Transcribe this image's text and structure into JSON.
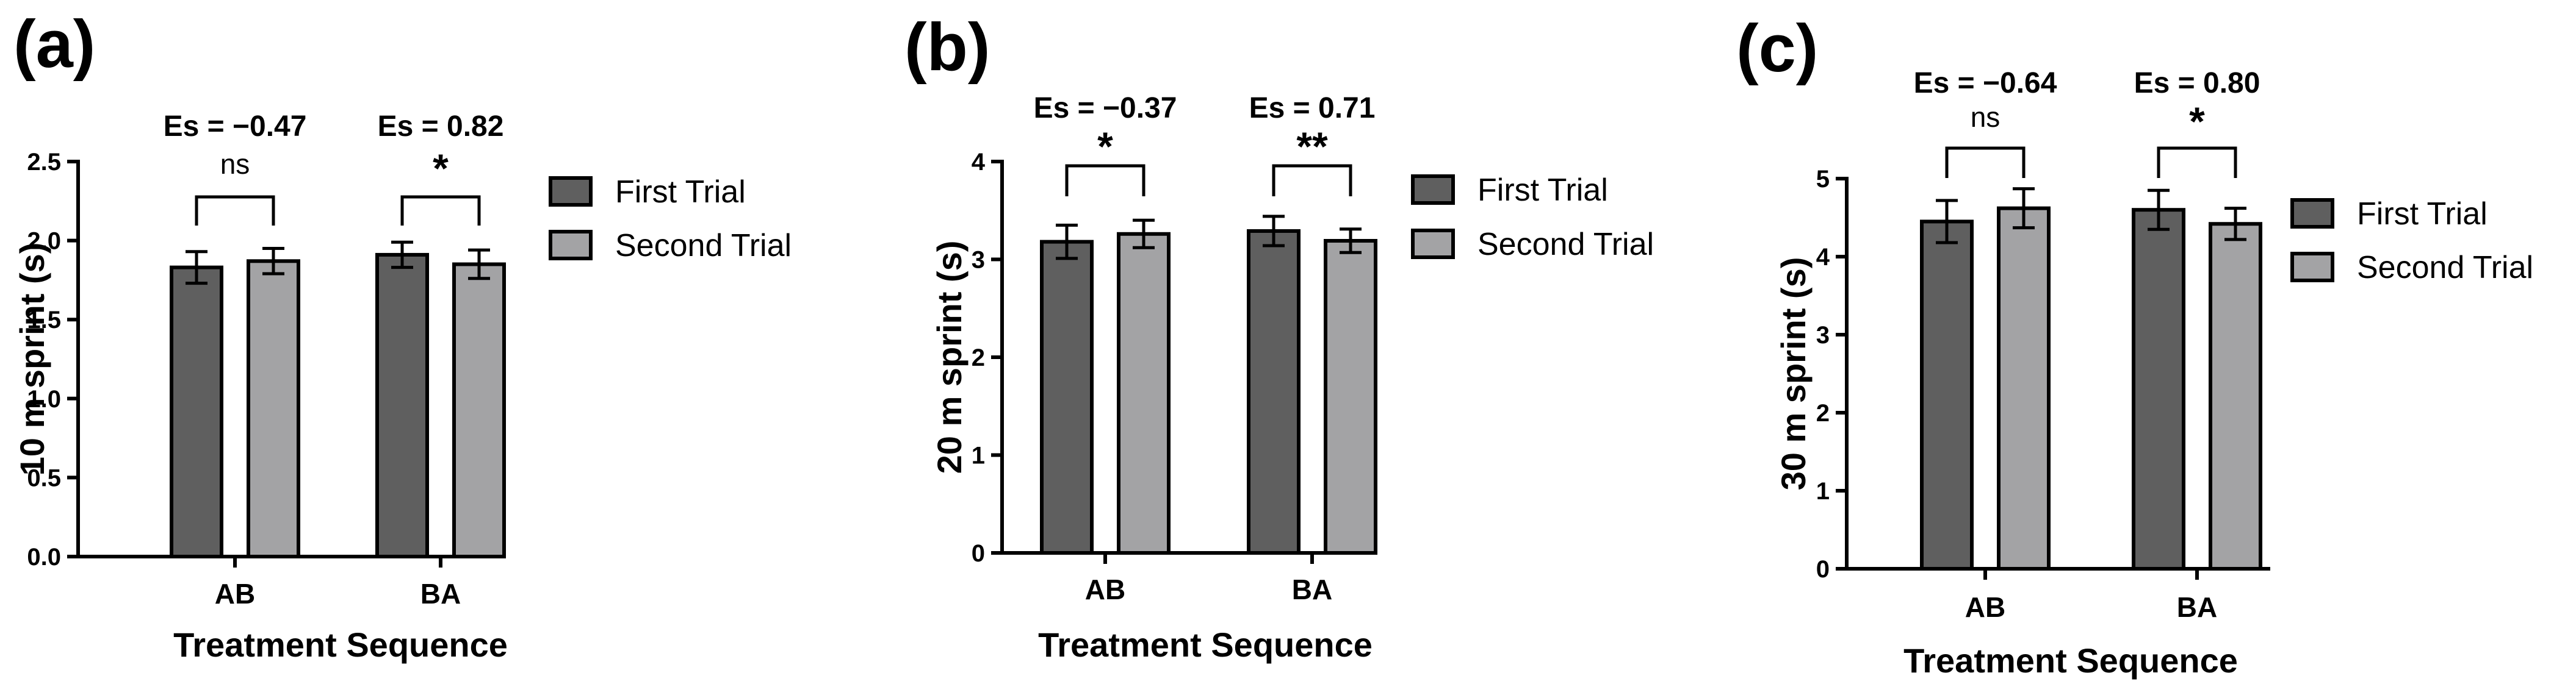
{
  "colors": {
    "first_trial": "#5f5f5f",
    "second_trial": "#a3a3a5"
  },
  "chart_data": [
    {
      "type": "bar",
      "panel_label": "(a)",
      "categories": [
        "AB",
        "BA"
      ],
      "xlabel": "Treatment Sequence",
      "ylabel": "10 m sprint (s)",
      "ylim": [
        0,
        2.5
      ],
      "yticks": [
        0.0,
        0.5,
        1.0,
        1.5,
        2.0,
        2.5
      ],
      "ytick_labels": [
        "0.0",
        "0.5",
        "1.0",
        "1.5",
        "2.0",
        "2.5"
      ],
      "legend": "right",
      "grid": false,
      "series": [
        {
          "name": "First Trial",
          "values": [
            1.83,
            1.91
          ],
          "errors": [
            0.1,
            0.08
          ]
        },
        {
          "name": "Second Trial",
          "values": [
            1.87,
            1.85
          ],
          "errors": [
            0.08,
            0.09
          ]
        }
      ],
      "annotations": [
        {
          "category": "AB",
          "effect_size": "Es = −0.47",
          "significance": "ns"
        },
        {
          "category": "BA",
          "effect_size": "Es = 0.82",
          "significance": "*"
        }
      ]
    },
    {
      "type": "bar",
      "panel_label": "(b)",
      "categories": [
        "AB",
        "BA"
      ],
      "xlabel": "Treatment Sequence",
      "ylabel": "20 m sprint (s)",
      "ylim": [
        0,
        4
      ],
      "yticks": [
        0,
        1,
        2,
        3,
        4
      ],
      "ytick_labels": [
        "0",
        "1",
        "2",
        "3",
        "4"
      ],
      "legend": "right",
      "grid": false,
      "series": [
        {
          "name": "First Trial",
          "values": [
            3.18,
            3.29
          ],
          "errors": [
            0.17,
            0.15
          ]
        },
        {
          "name": "Second Trial",
          "values": [
            3.26,
            3.19
          ],
          "errors": [
            0.14,
            0.12
          ]
        }
      ],
      "annotations": [
        {
          "category": "AB",
          "effect_size": "Es = −0.37",
          "significance": "*"
        },
        {
          "category": "BA",
          "effect_size": "Es = 0.71",
          "significance": "**"
        }
      ]
    },
    {
      "type": "bar",
      "panel_label": "(c)",
      "categories": [
        "AB",
        "BA"
      ],
      "xlabel": "Treatment Sequence",
      "ylabel": "30 m sprint (s)",
      "ylim": [
        0,
        5
      ],
      "yticks": [
        0,
        1,
        2,
        3,
        4,
        5
      ],
      "ytick_labels": [
        "0",
        "1",
        "2",
        "3",
        "4",
        "5"
      ],
      "legend": "right",
      "grid": false,
      "series": [
        {
          "name": "First Trial",
          "values": [
            4.45,
            4.6
          ],
          "errors": [
            0.27,
            0.25
          ]
        },
        {
          "name": "Second Trial",
          "values": [
            4.62,
            4.42
          ],
          "errors": [
            0.25,
            0.2
          ]
        }
      ],
      "annotations": [
        {
          "category": "AB",
          "effect_size": "Es = −0.64",
          "significance": "ns"
        },
        {
          "category": "BA",
          "effect_size": "Es = 0.80",
          "significance": "*"
        }
      ]
    }
  ]
}
